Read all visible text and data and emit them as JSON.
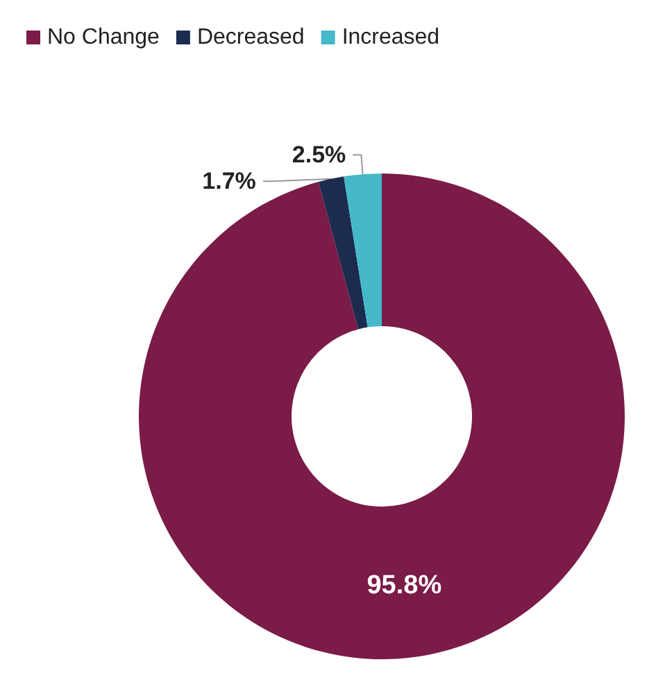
{
  "chart_data": {
    "type": "donut",
    "categories": [
      "No Change",
      "Decreased",
      "Increased"
    ],
    "values": [
      95.8,
      1.7,
      2.5
    ],
    "colors": [
      "#7b1b47",
      "#1b2c4e",
      "#45b9c9"
    ],
    "value_labels": [
      "95.8%",
      "1.7%",
      "2.5%"
    ],
    "legend": "top left"
  }
}
